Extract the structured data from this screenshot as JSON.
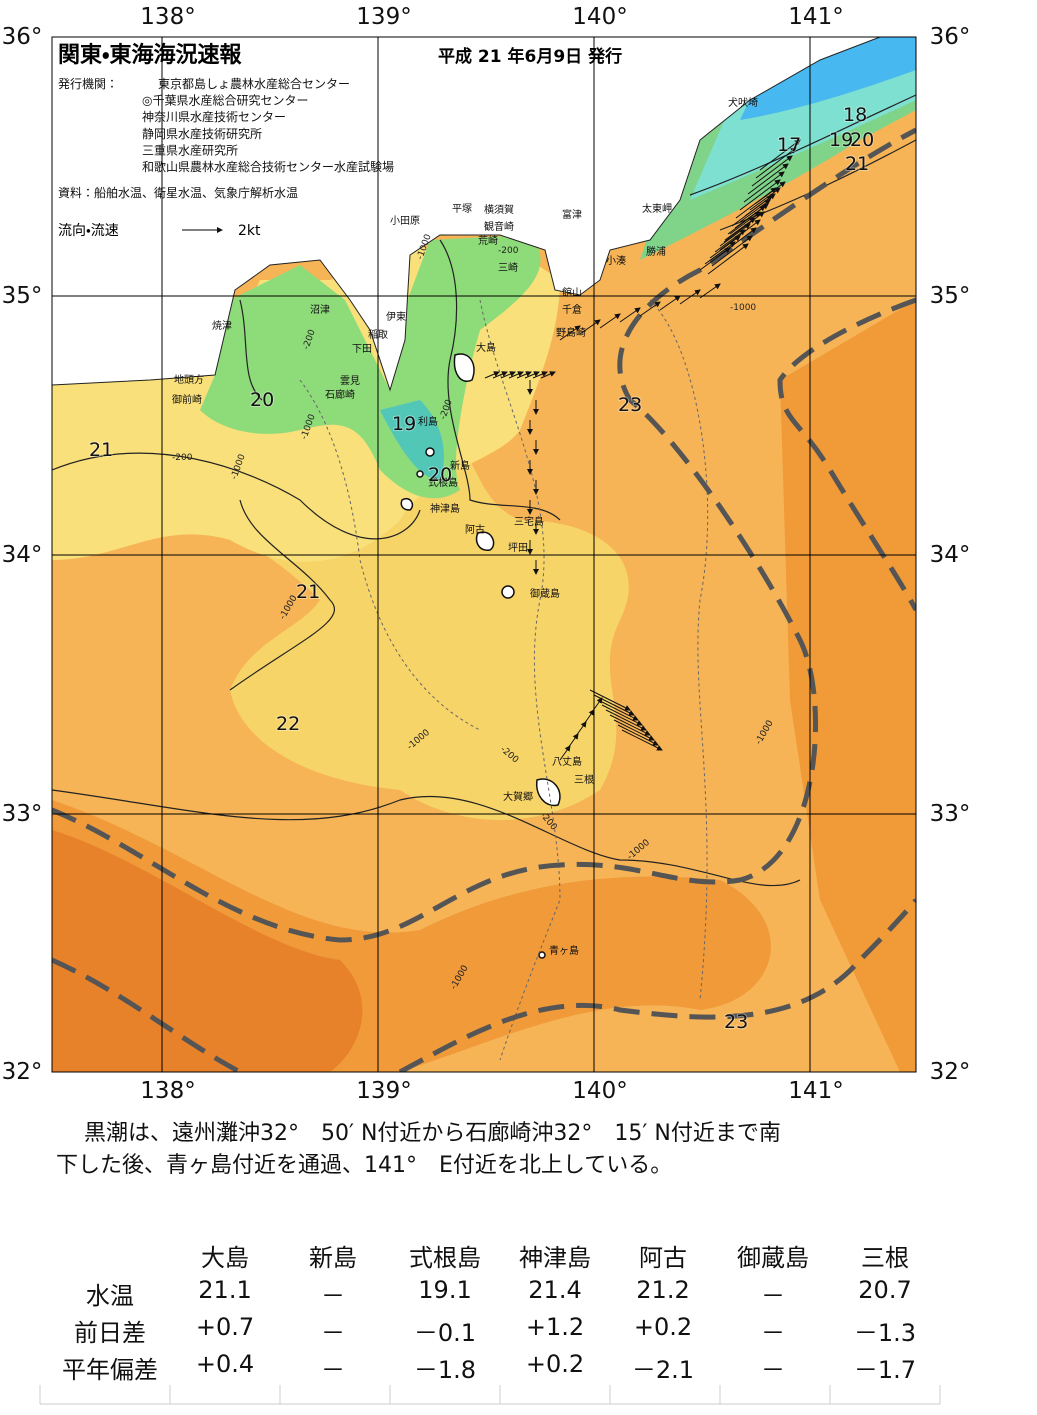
{
  "map": {
    "title": "関東・東海海況速報",
    "issued": "平成 21 年6月9日 発行",
    "publisher_label": "発行機関：",
    "publishers": [
      "東京都島しょ農林水産総合センター",
      "◎千葉県水産総合研究センター",
      "神奈川県水産技術センター",
      "静岡県水産技術研究所",
      "三重県水産研究所",
      "和歌山県農林水産総合技術センター水産試験場"
    ],
    "sources": "資料：船舶水温、衛星水温、気象庁解析水温",
    "current_legend": "流向・流速",
    "current_scale": "2kt",
    "lon_labels": [
      "138°",
      "139°",
      "140°",
      "141°"
    ],
    "lat_labels": [
      "36°",
      "35°",
      "34°",
      "33°",
      "32°"
    ],
    "place_labels": [
      "犬吠埼",
      "太東岬",
      "勝浦",
      "小湊",
      "富津",
      "横須賀",
      "平塚",
      "小田原",
      "観音崎",
      "荒崎",
      "三崎",
      "館山",
      "千倉",
      "野島崎",
      "大島",
      "沼津",
      "焼津",
      "伊東",
      "稲取",
      "下田",
      "雲見",
      "石廊崎",
      "地頭方",
      "御前崎",
      "利島",
      "新島",
      "式根島",
      "神津島",
      "阿古",
      "三宅島",
      "坪田",
      "御蔵島",
      "八丈島",
      "三根",
      "大賀郷",
      "青ヶ島"
    ],
    "isotherm_labels": [
      "18",
      "17",
      "19",
      "20",
      "21",
      "20",
      "19",
      "20",
      "21",
      "21",
      "22",
      "23",
      "23"
    ],
    "depth_labels": [
      "-200",
      "-200",
      "-1000",
      "-200",
      "-1000",
      "-1000",
      "-200",
      "-1000",
      "-1000",
      "-1000",
      "-200",
      "-1000",
      "-1000",
      "-200",
      "-1000"
    ]
  },
  "summary": [
    "黒潮は、遠州灘沖32°　50′ N付近から石廊崎沖32°　15′ N付近まで南",
    "下した後、青ヶ島付近を通過、141°　E付近を北上している。"
  ],
  "table": {
    "header": [
      "大島",
      "新島",
      "式根島",
      "神津島",
      "阿古",
      "御蔵島",
      "三根"
    ],
    "rows": [
      {
        "label": "水温",
        "cells": [
          "21.1",
          "－",
          "19.1",
          "21.4",
          "21.2",
          "－",
          "20.7"
        ]
      },
      {
        "label": "前日差",
        "cells": [
          "+0.7",
          "－",
          "－0.1",
          "+1.2",
          "+0.2",
          "－",
          "－1.3"
        ]
      },
      {
        "label": "平年偏差",
        "cells": [
          "+0.4",
          "－",
          "－1.8",
          "+0.2",
          "－2.1",
          "－",
          "－1.7"
        ]
      }
    ]
  }
}
